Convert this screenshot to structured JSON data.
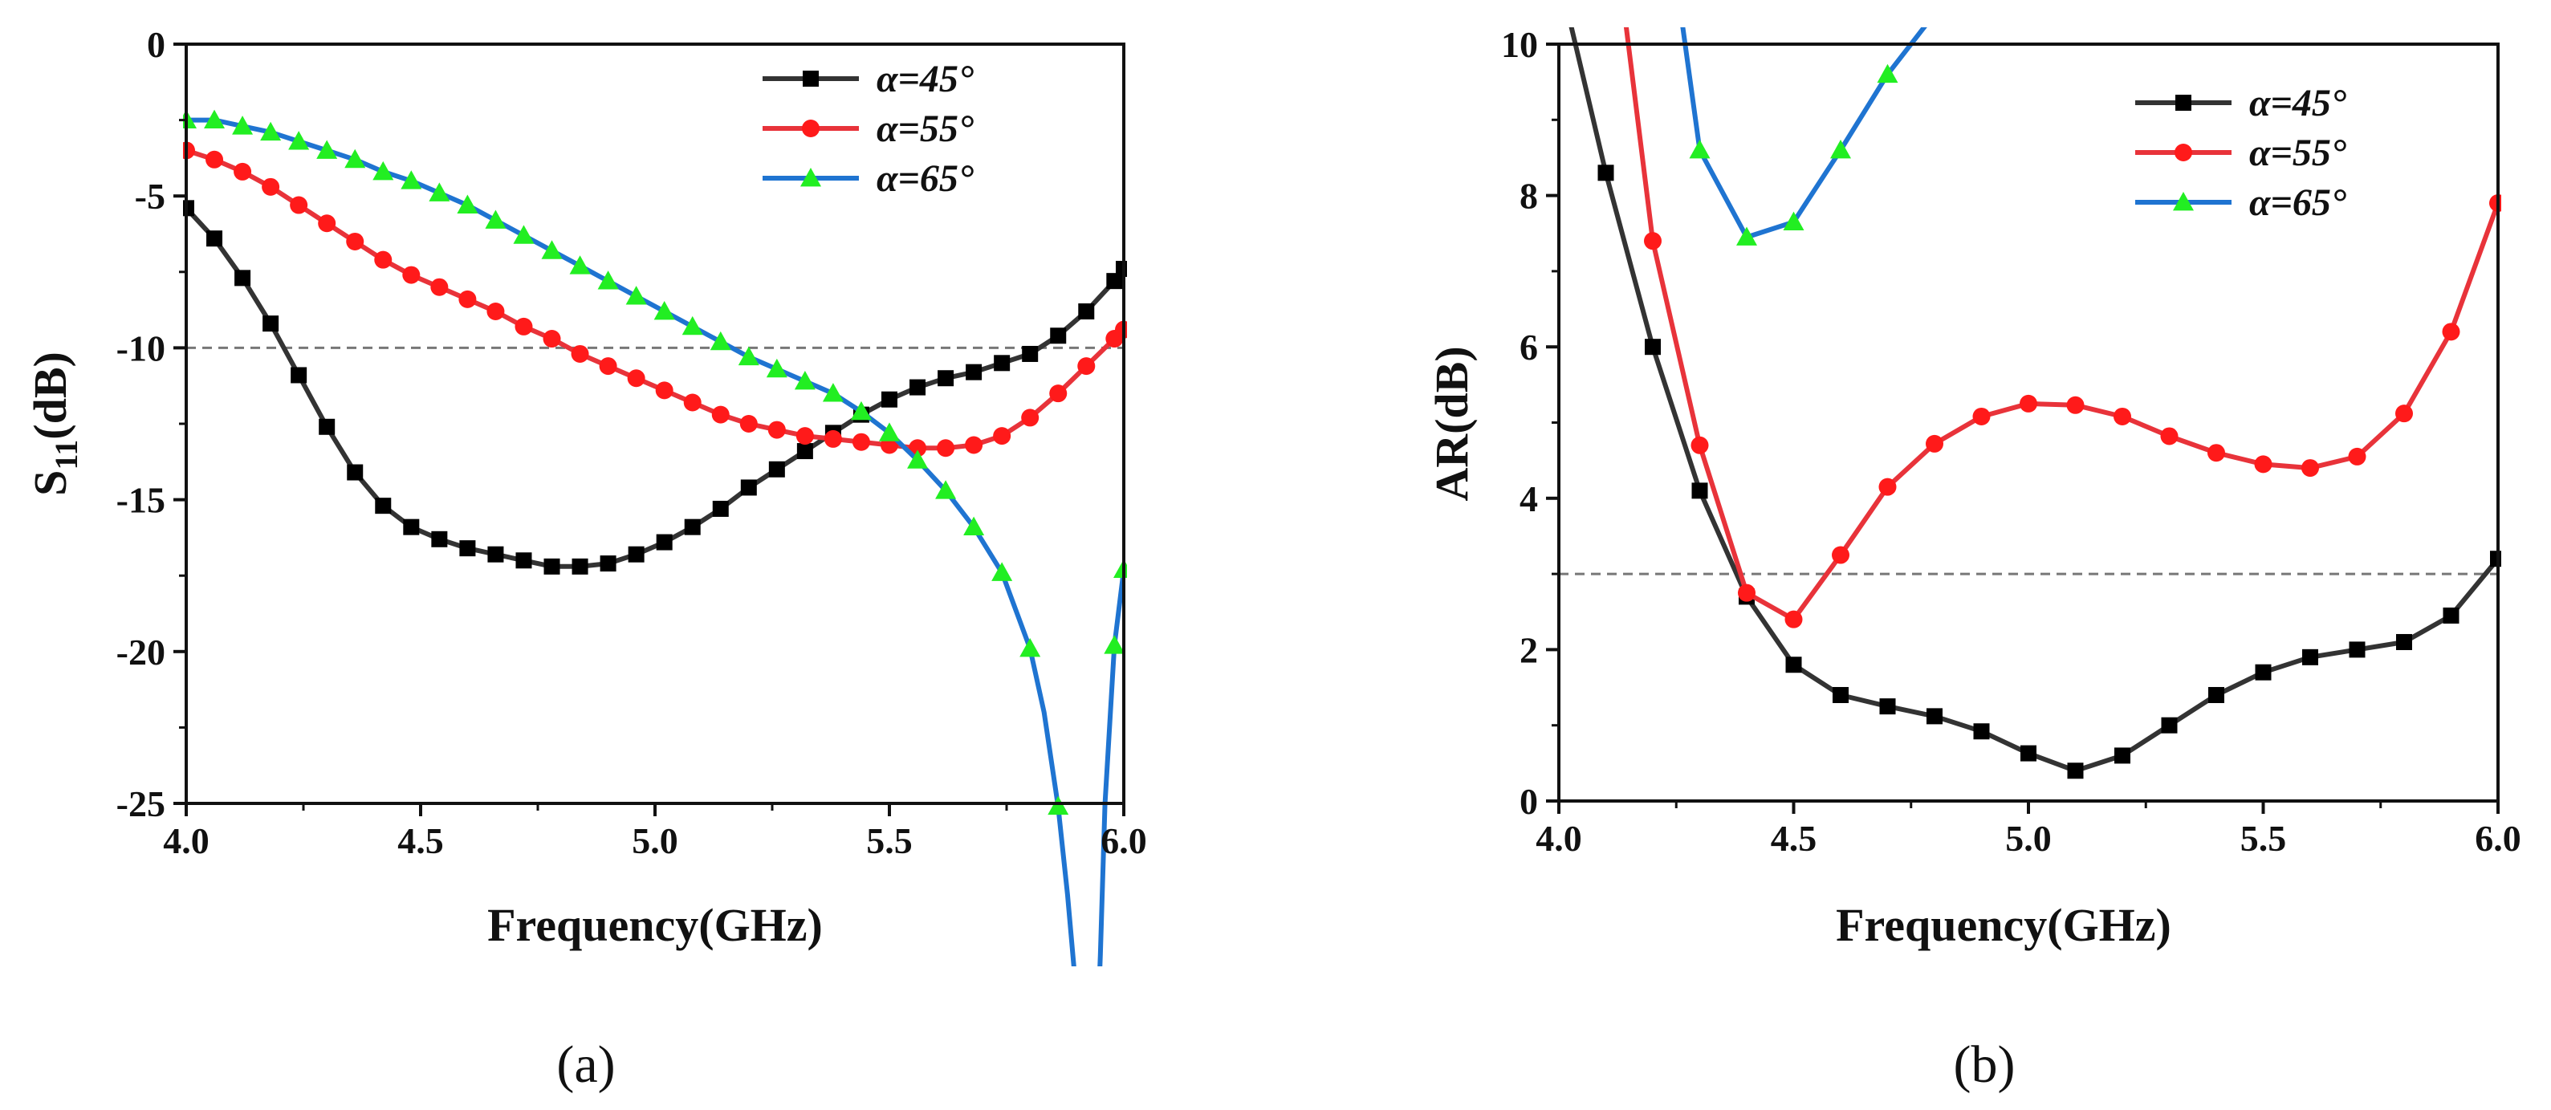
{
  "colors": {
    "alpha45": "#333333",
    "alpha55": "#e8333a",
    "alpha65": "#1f74d1",
    "alpha65_marker": "#22ee22",
    "alpha55_marker": "#ff1a1a",
    "alpha45_marker": "#000000",
    "reference_line": "#777777"
  },
  "chart_data": [
    {
      "type": "line",
      "panel_label": "(a)",
      "xlabel": "Frequency(GHz)",
      "ylabel_main": "S",
      "ylabel_sub": "11",
      "ylabel_tail": "(dB)",
      "xlim": [
        4.0,
        6.0
      ],
      "ylim": [
        -25,
        0
      ],
      "xticks": [
        "4.0",
        "4.5",
        "5.0",
        "5.5",
        "6.0"
      ],
      "yticks": [
        "0",
        "-5",
        "-10",
        "-15",
        "-20",
        "-25"
      ],
      "reference_line_y": -10,
      "legend_position": "top-right",
      "series": [
        {
          "name": "α=45°",
          "marker": "square",
          "x": [
            4.0,
            4.06,
            4.12,
            4.18,
            4.24,
            4.3,
            4.36,
            4.42,
            4.48,
            4.54,
            4.6,
            4.66,
            4.72,
            4.78,
            4.84,
            4.9,
            4.96,
            5.02,
            5.08,
            5.14,
            5.2,
            5.26,
            5.32,
            5.38,
            5.44,
            5.5,
            5.56,
            5.62,
            5.68,
            5.74,
            5.8,
            5.86,
            5.92,
            5.98,
            6.0
          ],
          "y": [
            -5.4,
            -6.4,
            -7.7,
            -9.2,
            -10.9,
            -12.6,
            -14.1,
            -15.2,
            -15.9,
            -16.3,
            -16.6,
            -16.8,
            -17.0,
            -17.2,
            -17.2,
            -17.1,
            -16.8,
            -16.4,
            -15.9,
            -15.3,
            -14.6,
            -14.0,
            -13.4,
            -12.8,
            -12.2,
            -11.7,
            -11.3,
            -11.0,
            -10.8,
            -10.5,
            -10.2,
            -9.6,
            -8.8,
            -7.8,
            -7.4
          ]
        },
        {
          "name": "α=55°",
          "marker": "circle",
          "x": [
            4.0,
            4.06,
            4.12,
            4.18,
            4.24,
            4.3,
            4.36,
            4.42,
            4.48,
            4.54,
            4.6,
            4.66,
            4.72,
            4.78,
            4.84,
            4.9,
            4.96,
            5.02,
            5.08,
            5.14,
            5.2,
            5.26,
            5.32,
            5.38,
            5.44,
            5.5,
            5.56,
            5.62,
            5.68,
            5.74,
            5.8,
            5.86,
            5.92,
            5.98,
            6.0
          ],
          "y": [
            -3.5,
            -3.8,
            -4.2,
            -4.7,
            -5.3,
            -5.9,
            -6.5,
            -7.1,
            -7.6,
            -8.0,
            -8.4,
            -8.8,
            -9.3,
            -9.7,
            -10.2,
            -10.6,
            -11.0,
            -11.4,
            -11.8,
            -12.2,
            -12.5,
            -12.7,
            -12.9,
            -13.0,
            -13.1,
            -13.2,
            -13.3,
            -13.3,
            -13.2,
            -12.9,
            -12.3,
            -11.5,
            -10.6,
            -9.7,
            -9.4
          ]
        },
        {
          "name": "α=65°",
          "marker": "triangle",
          "x": [
            4.0,
            4.06,
            4.12,
            4.18,
            4.24,
            4.3,
            4.36,
            4.42,
            4.48,
            4.54,
            4.6,
            4.66,
            4.72,
            4.78,
            4.84,
            4.9,
            4.96,
            5.02,
            5.08,
            5.14,
            5.2,
            5.26,
            5.32,
            5.38,
            5.44,
            5.5,
            5.56,
            5.62,
            5.68,
            5.74,
            5.8,
            5.86,
            5.98,
            6.0
          ],
          "y": [
            -2.5,
            -2.5,
            -2.7,
            -2.9,
            -3.2,
            -3.5,
            -3.8,
            -4.2,
            -4.5,
            -4.9,
            -5.3,
            -5.8,
            -6.3,
            -6.8,
            -7.3,
            -7.8,
            -8.3,
            -8.8,
            -9.3,
            -9.8,
            -10.3,
            -10.7,
            -11.1,
            -11.5,
            -12.1,
            -12.8,
            -13.7,
            -14.7,
            -15.9,
            -17.4,
            -19.9,
            -25.1,
            -19.8,
            -17.3
          ],
          "line_x": [
            4.0,
            4.06,
            4.12,
            4.18,
            4.24,
            4.3,
            4.36,
            4.42,
            4.48,
            4.54,
            4.6,
            4.66,
            4.72,
            4.78,
            4.84,
            4.9,
            4.96,
            5.02,
            5.08,
            5.14,
            5.2,
            5.26,
            5.32,
            5.38,
            5.44,
            5.5,
            5.56,
            5.62,
            5.68,
            5.74,
            5.8,
            5.83,
            5.86,
            5.88,
            5.9,
            5.91,
            5.94,
            5.95,
            5.96,
            5.98,
            6.0
          ],
          "line_y": [
            -2.5,
            -2.5,
            -2.7,
            -2.9,
            -3.2,
            -3.5,
            -3.8,
            -4.2,
            -4.5,
            -4.9,
            -5.3,
            -5.8,
            -6.3,
            -6.8,
            -7.3,
            -7.8,
            -8.3,
            -8.8,
            -9.3,
            -9.8,
            -10.3,
            -10.7,
            -11.1,
            -11.5,
            -12.1,
            -12.8,
            -13.7,
            -14.7,
            -15.9,
            -17.4,
            -19.9,
            -22.0,
            -25.1,
            -28.0,
            -31.5,
            -34.0,
            -34.0,
            -30.0,
            -25.0,
            -19.8,
            -17.3
          ]
        }
      ]
    },
    {
      "type": "line",
      "panel_label": "(b)",
      "xlabel": "Frequency(GHz)",
      "ylabel_main": "AR(dB)",
      "xlim": [
        4.0,
        6.0
      ],
      "ylim": [
        0,
        10
      ],
      "xticks": [
        "4.0",
        "4.5",
        "5.0",
        "5.5",
        "6.0"
      ],
      "yticks": [
        "0",
        "2",
        "4",
        "6",
        "8",
        "10"
      ],
      "reference_line_y": 3,
      "legend_position": "top-right",
      "series": [
        {
          "name": "α=45°",
          "marker": "square",
          "x": [
            4.1,
            4.2,
            4.3,
            4.4,
            4.5,
            4.6,
            4.7,
            4.8,
            4.9,
            5.0,
            5.1,
            5.2,
            5.3,
            5.4,
            5.5,
            5.6,
            5.7,
            5.8,
            5.9,
            6.0
          ],
          "y": [
            8.3,
            6.0,
            4.1,
            2.7,
            1.8,
            1.4,
            1.25,
            1.12,
            0.92,
            0.63,
            0.4,
            0.6,
            1.0,
            1.4,
            1.7,
            1.9,
            2.0,
            2.1,
            2.45,
            3.2
          ],
          "line_x": [
            4.02,
            4.1,
            4.2,
            4.3,
            4.4,
            4.5,
            4.6,
            4.7,
            4.8,
            4.9,
            5.0,
            5.1,
            5.2,
            5.3,
            5.4,
            5.5,
            5.6,
            5.7,
            5.8,
            5.9,
            6.0
          ],
          "line_y": [
            10.4,
            8.3,
            6.0,
            4.1,
            2.7,
            1.8,
            1.4,
            1.25,
            1.12,
            0.92,
            0.63,
            0.4,
            0.6,
            1.0,
            1.4,
            1.7,
            1.9,
            2.0,
            2.1,
            2.45,
            3.2
          ]
        },
        {
          "name": "α=55°",
          "marker": "circle",
          "x": [
            4.2,
            4.3,
            4.4,
            4.5,
            4.6,
            4.7,
            4.8,
            4.9,
            5.0,
            5.1,
            5.2,
            5.3,
            5.4,
            5.5,
            5.6,
            5.7,
            5.8,
            5.9,
            6.0
          ],
          "y": [
            7.4,
            4.7,
            2.75,
            2.4,
            3.25,
            4.15,
            4.72,
            5.08,
            5.25,
            5.23,
            5.08,
            4.82,
            4.6,
            4.45,
            4.4,
            4.55,
            5.12,
            6.2,
            7.9
          ],
          "line_x": [
            4.14,
            4.2,
            4.3,
            4.4,
            4.5,
            4.6,
            4.7,
            4.8,
            4.9,
            5.0,
            5.1,
            5.2,
            5.3,
            5.4,
            5.5,
            5.6,
            5.7,
            5.8,
            5.9,
            6.0
          ],
          "line_y": [
            10.4,
            7.4,
            4.7,
            2.75,
            2.4,
            3.25,
            4.15,
            4.72,
            5.08,
            5.25,
            5.23,
            5.08,
            4.82,
            4.6,
            4.45,
            4.4,
            4.55,
            5.12,
            6.2,
            7.9
          ]
        },
        {
          "name": "α=65°",
          "marker": "triangle",
          "x": [
            4.3,
            4.4,
            4.5,
            4.6,
            4.7
          ],
          "y": [
            8.6,
            7.45,
            7.65,
            8.6,
            9.6
          ],
          "line_x": [
            4.26,
            4.3,
            4.4,
            4.5,
            4.6,
            4.7,
            4.8
          ],
          "line_y": [
            10.4,
            8.6,
            7.45,
            7.65,
            8.6,
            9.6,
            10.4
          ]
        }
      ]
    }
  ]
}
